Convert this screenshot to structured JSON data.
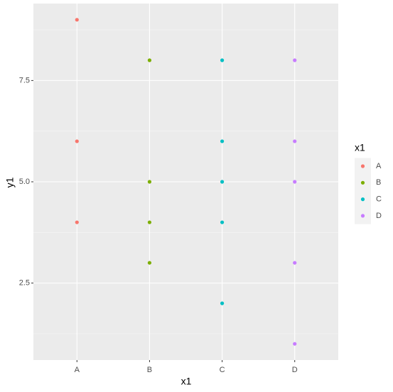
{
  "chart_data": {
    "type": "scatter",
    "x_label": "x1",
    "y_label": "y1",
    "categories": [
      "A",
      "B",
      "C",
      "D"
    ],
    "series": [
      {
        "name": "A",
        "color": "#F8766D",
        "x": [
          "A",
          "A",
          "A"
        ],
        "values": [
          9,
          6,
          4
        ]
      },
      {
        "name": "B",
        "color": "#7CAE00",
        "x": [
          "B",
          "B",
          "B",
          "B"
        ],
        "values": [
          8,
          5,
          4,
          3
        ]
      },
      {
        "name": "C",
        "color": "#00BFC4",
        "x": [
          "C",
          "C",
          "C",
          "C",
          "C"
        ],
        "values": [
          8,
          6,
          5,
          4,
          2
        ]
      },
      {
        "name": "D",
        "color": "#C77CFF",
        "x": [
          "D",
          "D",
          "D",
          "D",
          "D"
        ],
        "values": [
          8,
          6,
          5,
          3,
          1
        ]
      }
    ],
    "legend_title": "x1",
    "legend_position": "right",
    "ylim": [
      0.6,
      9.4
    ],
    "yticks": [
      {
        "value": 2.5,
        "label": "2.5"
      },
      {
        "value": 5,
        "label": "5.0"
      },
      {
        "value": 7.5,
        "label": "7.5"
      }
    ],
    "minor_yticks": [
      1.25,
      3.75,
      6.25,
      8.75
    ],
    "grid": true
  }
}
